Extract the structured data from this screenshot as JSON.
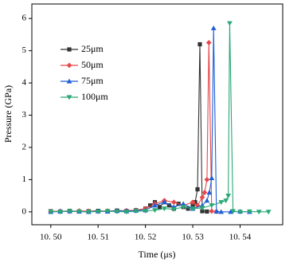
{
  "chart_data": {
    "type": "line",
    "x_label": "Time (μs)",
    "y_label": "Pressure (GPa)",
    "xlim": [
      10.496,
      10.549
    ],
    "ylim": [
      -0.4,
      6.45
    ],
    "xticks": [
      {
        "value": 10.5,
        "label": "10. 50"
      },
      {
        "value": 10.51,
        "label": "10. 51"
      },
      {
        "value": 10.52,
        "label": "10. 52"
      },
      {
        "value": 10.53,
        "label": "10. 53"
      },
      {
        "value": 10.54,
        "label": "10. 54"
      }
    ],
    "yticks": [
      0,
      1,
      2,
      3,
      4,
      5,
      6
    ],
    "series": [
      {
        "name": "25μm",
        "color": "#333333",
        "marker": "square",
        "x": [
          10.5,
          10.502,
          10.504,
          10.506,
          10.508,
          10.51,
          10.512,
          10.514,
          10.516,
          10.518,
          10.52,
          10.521,
          10.522,
          10.523,
          10.524,
          10.525,
          10.526,
          10.527,
          10.528,
          10.529,
          10.53,
          10.5305,
          10.531,
          10.5315,
          10.532,
          10.533
        ],
        "values": [
          0.02,
          0.01,
          0.03,
          0.01,
          0.02,
          0.03,
          0.02,
          0.04,
          0.03,
          0.05,
          0.1,
          0.2,
          0.3,
          0.15,
          0.3,
          0.2,
          0.1,
          0.25,
          0.15,
          0.1,
          0.2,
          0.3,
          0.7,
          5.2,
          0.02,
          0.01
        ]
      },
      {
        "name": "50μm",
        "color": "#e8474b",
        "marker": "diamond",
        "x": [
          10.5,
          10.502,
          10.504,
          10.506,
          10.508,
          10.51,
          10.512,
          10.514,
          10.516,
          10.518,
          10.52,
          10.522,
          10.524,
          10.526,
          10.528,
          10.53,
          10.531,
          10.532,
          10.5325,
          10.533,
          10.5334,
          10.534,
          10.535
        ],
        "values": [
          0.01,
          0.02,
          0.01,
          0.03,
          0.02,
          0.01,
          0.03,
          0.02,
          0.04,
          0.05,
          0.1,
          0.25,
          0.35,
          0.3,
          0.2,
          0.3,
          0.2,
          0.45,
          0.6,
          1.0,
          5.25,
          0.02,
          0.01
        ]
      },
      {
        "name": "75μm",
        "color": "#1f5fd6",
        "marker": "triangle-up",
        "x": [
          10.5,
          10.502,
          10.504,
          10.506,
          10.508,
          10.51,
          10.512,
          10.514,
          10.516,
          10.518,
          10.52,
          10.522,
          10.524,
          10.526,
          10.528,
          10.53,
          10.532,
          10.533,
          10.5335,
          10.534,
          10.5344,
          10.535,
          10.536,
          10.538,
          10.54,
          10.542
        ],
        "values": [
          0.0,
          0.01,
          0.02,
          0.01,
          0.0,
          0.02,
          0.01,
          0.03,
          0.02,
          0.04,
          0.05,
          0.2,
          0.3,
          0.15,
          0.25,
          0.1,
          0.2,
          0.35,
          0.6,
          1.05,
          5.7,
          0.01,
          0.0,
          0.0,
          0.01,
          0.0
        ]
      },
      {
        "name": "100μm",
        "color": "#2aa876",
        "marker": "triangle-down",
        "x": [
          10.5,
          10.502,
          10.504,
          10.506,
          10.508,
          10.51,
          10.512,
          10.514,
          10.516,
          10.518,
          10.52,
          10.522,
          10.524,
          10.526,
          10.528,
          10.53,
          10.532,
          10.534,
          10.536,
          10.537,
          10.5375,
          10.5378,
          10.5385,
          10.54,
          10.542,
          10.544,
          10.546
        ],
        "values": [
          0.01,
          0.0,
          0.02,
          0.01,
          0.0,
          0.01,
          0.02,
          0.01,
          0.0,
          0.02,
          0.03,
          0.05,
          0.1,
          0.08,
          0.15,
          0.1,
          0.12,
          0.2,
          0.3,
          0.35,
          0.5,
          5.85,
          0.02,
          0.0,
          0.01,
          0.0,
          0.0
        ]
      }
    ]
  }
}
